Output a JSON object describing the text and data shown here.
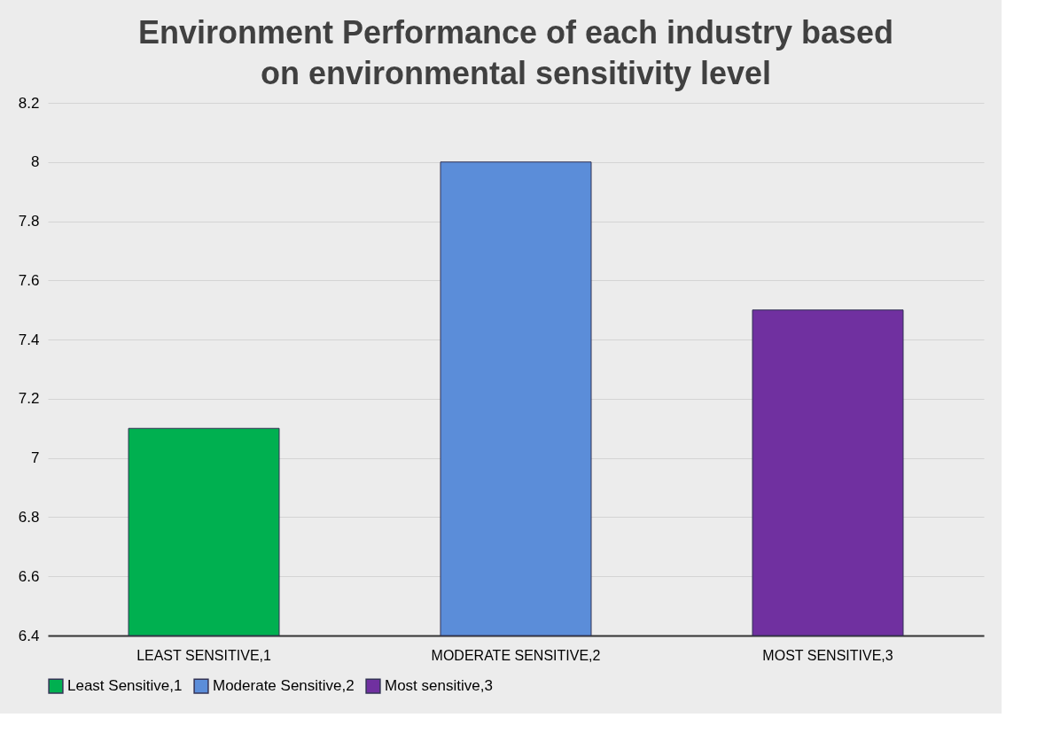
{
  "chart_data": {
    "type": "bar",
    "title": "Environment Performance of each industry based on environmental sensitivity level",
    "categories": [
      "LEAST SENSITIVE,1",
      "MODERATE SENSITIVE,2",
      "MOST SENSITIVE,3"
    ],
    "series": [
      {
        "name": "Least Sensitive,1",
        "color": "#00b050",
        "values": [
          7.1,
          null,
          null
        ]
      },
      {
        "name": "Moderate Sensitive,2",
        "color": "#5b8dd9",
        "values": [
          null,
          8.0,
          null
        ]
      },
      {
        "name": "Most sensitive,3",
        "color": "#7030a0",
        "values": [
          null,
          null,
          7.5
        ]
      }
    ],
    "ylim": [
      6.4,
      8.2
    ],
    "yticks": [
      6.4,
      6.6,
      6.8,
      7,
      7.2,
      7.4,
      7.6,
      7.8,
      8,
      8.2
    ],
    "grid": "y",
    "legend": "bottom"
  }
}
